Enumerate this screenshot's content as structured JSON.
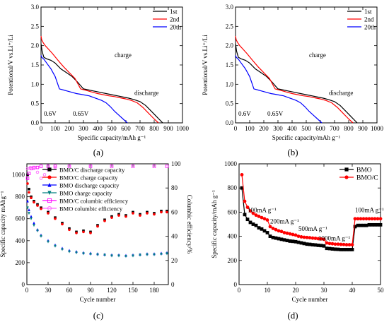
{
  "panel_labels": [
    "(a)",
    "(b)",
    "(c)",
    "(d)"
  ],
  "chart_data": [
    {
      "panel": "(a)",
      "type": "line",
      "xlabel": "Specific capacity/mAh g⁻¹",
      "ylabel": "Potentional/V vs.Li⁺/Li",
      "xlim": [
        0,
        1000
      ],
      "ylim": [
        0.0,
        3.0
      ],
      "xticks": [
        0,
        100,
        200,
        300,
        400,
        500,
        600,
        700,
        800,
        900,
        1000
      ],
      "yticks": [
        0.0,
        0.5,
        1.0,
        1.5,
        2.0,
        2.5,
        3.0
      ],
      "legend_position": "top-right",
      "annotations": [
        {
          "text": "charge",
          "x": 520,
          "y": 1.7
        },
        {
          "text": "discharge",
          "x": 660,
          "y": 0.72
        },
        {
          "text": "0.6V",
          "x": 20,
          "y": 0.18
        },
        {
          "text": "0.65V",
          "x": 225,
          "y": 0.18
        }
      ],
      "series": [
        {
          "name": "1st",
          "color": "#000000",
          "x": [
            860,
            820,
            780,
            740,
            700,
            660,
            620,
            580,
            540,
            500,
            460,
            420,
            380,
            340,
            300,
            260,
            220,
            180,
            140,
            100,
            70,
            40,
            20,
            8,
            0
          ],
          "y": [
            0.0,
            0.15,
            0.3,
            0.45,
            0.55,
            0.6,
            0.64,
            0.67,
            0.7,
            0.73,
            0.76,
            0.79,
            0.82,
            0.85,
            0.88,
            1.05,
            1.2,
            1.3,
            1.4,
            1.55,
            1.62,
            1.66,
            1.7,
            1.85,
            2.05
          ]
        },
        {
          "name": "2nd",
          "color": "#ff0000",
          "x": [
            830,
            800,
            760,
            720,
            680,
            640,
            600,
            560,
            520,
            480,
            440,
            400,
            360,
            320,
            280,
            240,
            200,
            160,
            120,
            80,
            50,
            30,
            15,
            5,
            0
          ],
          "y": [
            0.0,
            0.1,
            0.25,
            0.4,
            0.52,
            0.58,
            0.62,
            0.65,
            0.68,
            0.7,
            0.73,
            0.76,
            0.8,
            0.84,
            0.88,
            1.15,
            1.3,
            1.45,
            1.62,
            1.8,
            1.92,
            2.0,
            2.08,
            2.15,
            2.25
          ]
        },
        {
          "name": "20th",
          "color": "#0000ff",
          "x": [
            610,
            580,
            550,
            520,
            490,
            460,
            430,
            400,
            370,
            340,
            310,
            280,
            250,
            220,
            190,
            160,
            130,
            100,
            70,
            40,
            20,
            5,
            0
          ],
          "y": [
            0.0,
            0.1,
            0.2,
            0.3,
            0.42,
            0.52,
            0.58,
            0.62,
            0.66,
            0.7,
            0.72,
            0.74,
            0.76,
            0.79,
            0.82,
            0.85,
            0.88,
            1.2,
            1.4,
            1.55,
            1.65,
            1.7,
            1.75
          ]
        }
      ]
    },
    {
      "panel": "(b)",
      "type": "line",
      "xlabel": "Specific capacity/mAh g⁻¹",
      "ylabel": "Potentional/V vs.Li⁺/Li",
      "xlim": [
        0,
        1000
      ],
      "ylim": [
        0.0,
        3.0
      ],
      "xticks": [
        0,
        100,
        200,
        300,
        400,
        500,
        600,
        700,
        800,
        900,
        1000
      ],
      "yticks": [
        0.0,
        0.5,
        1.0,
        1.5,
        2.0,
        2.5,
        3.0
      ],
      "legend_position": "top-right",
      "annotations": [
        {
          "text": "charge",
          "x": 520,
          "y": 1.7
        },
        {
          "text": "discharge",
          "x": 660,
          "y": 0.72
        },
        {
          "text": "0.6V",
          "x": 20,
          "y": 0.18
        },
        {
          "text": "0.65V",
          "x": 225,
          "y": 0.18
        }
      ],
      "series": [
        {
          "name": "1st",
          "color": "#000000",
          "x": [
            860,
            820,
            780,
            740,
            700,
            660,
            620,
            580,
            540,
            500,
            460,
            420,
            380,
            340,
            300,
            260,
            220,
            180,
            140,
            100,
            70,
            40,
            20,
            8,
            0
          ],
          "y": [
            0.0,
            0.15,
            0.3,
            0.45,
            0.55,
            0.6,
            0.64,
            0.67,
            0.7,
            0.73,
            0.76,
            0.79,
            0.82,
            0.85,
            0.88,
            1.05,
            1.2,
            1.3,
            1.4,
            1.55,
            1.62,
            1.66,
            1.7,
            1.85,
            2.05
          ]
        },
        {
          "name": "2nd",
          "color": "#ff0000",
          "x": [
            830,
            800,
            760,
            720,
            680,
            640,
            600,
            560,
            520,
            480,
            440,
            400,
            360,
            320,
            280,
            240,
            200,
            160,
            120,
            80,
            50,
            30,
            15,
            5,
            0
          ],
          "y": [
            0.0,
            0.1,
            0.25,
            0.4,
            0.52,
            0.58,
            0.62,
            0.65,
            0.68,
            0.7,
            0.73,
            0.76,
            0.8,
            0.84,
            0.88,
            1.15,
            1.3,
            1.45,
            1.62,
            1.8,
            1.92,
            2.0,
            2.08,
            2.15,
            2.25
          ]
        },
        {
          "name": "20th",
          "color": "#0000ff",
          "x": [
            610,
            580,
            550,
            520,
            490,
            460,
            430,
            400,
            370,
            340,
            310,
            280,
            250,
            220,
            190,
            160,
            130,
            100,
            70,
            40,
            20,
            5,
            0
          ],
          "y": [
            0.0,
            0.1,
            0.2,
            0.3,
            0.42,
            0.52,
            0.58,
            0.62,
            0.66,
            0.7,
            0.72,
            0.74,
            0.76,
            0.79,
            0.82,
            0.85,
            0.88,
            1.2,
            1.4,
            1.55,
            1.65,
            1.7,
            1.75
          ]
        }
      ]
    },
    {
      "panel": "(c)",
      "type": "scatter",
      "xlabel": "Cycle number",
      "ylabel": "Specific capacity mAhg⁻¹",
      "y2label": "Columbic efficiency/%",
      "xlim": [
        0,
        200
      ],
      "ylim": [
        0,
        1100
      ],
      "y2lim": [
        0,
        100
      ],
      "xticks": [
        0,
        30,
        60,
        90,
        120,
        150,
        180
      ],
      "yticks": [
        0,
        200,
        400,
        600,
        800,
        1000
      ],
      "y2ticks": [
        0,
        20,
        40,
        60,
        80,
        100
      ],
      "legend_position": "top",
      "series": [
        {
          "name": "BMO/C discharge capacity",
          "color": "#000000",
          "marker": "square",
          "axis": "left",
          "x": [
            1,
            3,
            6,
            10,
            15,
            20,
            30,
            40,
            50,
            60,
            70,
            80,
            90,
            100,
            110,
            120,
            130,
            140,
            150,
            160,
            170,
            180,
            190,
            198
          ],
          "y": [
            1000,
            870,
            800,
            760,
            730,
            700,
            660,
            610,
            560,
            510,
            480,
            490,
            480,
            540,
            590,
            620,
            640,
            630,
            660,
            640,
            660,
            650,
            670,
            670
          ]
        },
        {
          "name": "BMO/C charge capacity",
          "color": "#ff0000",
          "marker": "circle",
          "axis": "left",
          "x": [
            1,
            3,
            6,
            10,
            15,
            20,
            30,
            40,
            50,
            60,
            70,
            80,
            90,
            100,
            110,
            120,
            130,
            140,
            150,
            160,
            170,
            180,
            190,
            198
          ],
          "y": [
            920,
            840,
            790,
            750,
            720,
            690,
            650,
            600,
            550,
            500,
            470,
            480,
            470,
            530,
            580,
            610,
            630,
            620,
            650,
            630,
            650,
            640,
            660,
            660
          ]
        },
        {
          "name": "BMO discharge capacity",
          "color": "#0000ff",
          "marker": "triangle",
          "axis": "left",
          "x": [
            1,
            3,
            6,
            10,
            15,
            20,
            30,
            40,
            50,
            60,
            70,
            80,
            90,
            100,
            110,
            120,
            130,
            140,
            150,
            160,
            170,
            180,
            190,
            198
          ],
          "y": [
            760,
            680,
            620,
            560,
            500,
            450,
            400,
            360,
            330,
            310,
            300,
            290,
            285,
            280,
            275,
            270,
            270,
            265,
            270,
            275,
            280,
            280,
            285,
            290
          ]
        },
        {
          "name": "BMO charge capacity",
          "color": "#008080",
          "marker": "triangle-down",
          "axis": "left",
          "x": [
            1,
            3,
            6,
            10,
            15,
            20,
            30,
            40,
            50,
            60,
            70,
            80,
            90,
            100,
            110,
            120,
            130,
            140,
            150,
            160,
            170,
            180,
            190,
            198
          ],
          "y": [
            700,
            650,
            600,
            540,
            490,
            440,
            390,
            350,
            320,
            300,
            290,
            282,
            278,
            272,
            268,
            262,
            262,
            258,
            262,
            268,
            272,
            272,
            278,
            282
          ]
        },
        {
          "name": "BMO/C  columbic efficiency",
          "color": "#ff00ff",
          "marker": "square-open",
          "axis": "right",
          "x": [
            1,
            3,
            6,
            10,
            15,
            20,
            30,
            40,
            60,
            90,
            120,
            150,
            180,
            198
          ],
          "y": [
            88,
            92,
            96,
            97,
            97,
            98,
            98,
            98,
            98,
            98,
            98,
            98,
            98,
            98
          ]
        },
        {
          "name": "BMO columbic efficiency",
          "color": "#ff66ff",
          "marker": "circle-open",
          "axis": "right",
          "x": [
            1,
            5,
            10,
            15,
            20,
            25,
            30,
            40,
            60,
            90,
            120,
            150,
            180,
            198
          ],
          "y": [
            96,
            97,
            96,
            93,
            88,
            91,
            95,
            97,
            98,
            98,
            98,
            98,
            98,
            98
          ]
        }
      ]
    },
    {
      "panel": "(d)",
      "type": "line",
      "xlabel": "Cycle number",
      "ylabel": "Specific capacity/mAh g⁻¹",
      "xlim": [
        0,
        50
      ],
      "ylim": [
        0,
        1000
      ],
      "xticks": [
        0,
        10,
        20,
        30,
        40,
        50
      ],
      "yticks": [
        0,
        200,
        400,
        600,
        800,
        1000
      ],
      "legend_position": "top-right",
      "annotations": [
        {
          "text": "100mA g⁻¹",
          "x": 3,
          "y": 600
        },
        {
          "text": "200mA g⁻¹",
          "x": 11,
          "y": 505
        },
        {
          "text": "500mA g⁻¹",
          "x": 21,
          "y": 445
        },
        {
          "text": "1000mA g⁻¹",
          "x": 28,
          "y": 365
        },
        {
          "text": "100mA g⁻¹",
          "x": 41,
          "y": 600
        }
      ],
      "series": [
        {
          "name": "BMO",
          "color": "#000000",
          "marker": "square",
          "x": [
            1,
            2,
            3,
            4,
            5,
            6,
            7,
            8,
            9,
            10,
            11,
            12,
            13,
            14,
            15,
            16,
            17,
            18,
            19,
            20,
            21,
            22,
            23,
            24,
            25,
            26,
            27,
            28,
            29,
            30,
            31,
            32,
            33,
            34,
            35,
            36,
            37,
            38,
            39,
            40,
            41,
            42,
            43,
            44,
            45,
            46,
            47,
            48,
            49,
            50
          ],
          "y": [
            800,
            580,
            540,
            515,
            500,
            490,
            470,
            460,
            445,
            430,
            400,
            390,
            385,
            380,
            375,
            370,
            365,
            360,
            358,
            355,
            350,
            345,
            340,
            335,
            333,
            330,
            328,
            325,
            323,
            320,
            300,
            298,
            295,
            293,
            292,
            290,
            290,
            290,
            290,
            290,
            480,
            490,
            490,
            490,
            490,
            495,
            495,
            495,
            495,
            495
          ]
        },
        {
          "name": "BMO/C",
          "color": "#ff0000",
          "marker": "circle",
          "x": [
            1,
            2,
            3,
            4,
            5,
            6,
            7,
            8,
            9,
            10,
            11,
            12,
            13,
            14,
            15,
            16,
            17,
            18,
            19,
            20,
            21,
            22,
            23,
            24,
            25,
            26,
            27,
            28,
            29,
            30,
            31,
            32,
            33,
            34,
            35,
            36,
            37,
            38,
            39,
            40,
            41,
            42,
            43,
            44,
            45,
            46,
            47,
            48,
            49,
            50
          ],
          "y": [
            910,
            690,
            640,
            610,
            590,
            575,
            565,
            555,
            545,
            535,
            480,
            465,
            455,
            445,
            440,
            430,
            425,
            420,
            415,
            410,
            400,
            395,
            392,
            390,
            388,
            385,
            383,
            380,
            378,
            375,
            345,
            340,
            338,
            335,
            335,
            333,
            332,
            330,
            330,
            330,
            545,
            545,
            545,
            545,
            545,
            545,
            545,
            545,
            545,
            545
          ]
        }
      ]
    }
  ]
}
